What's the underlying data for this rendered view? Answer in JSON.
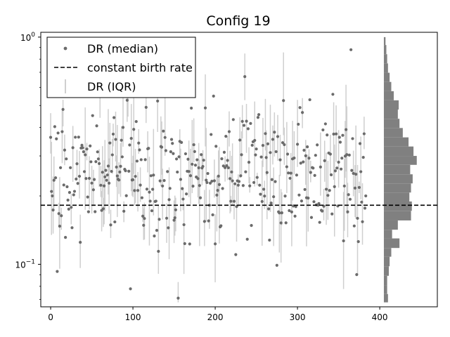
{
  "chart_data": {
    "type": "scatter",
    "title": "Config 19",
    "xlabel": "",
    "ylabel": "",
    "xlim": [
      -12,
      470
    ],
    "ylim": [
      0.065,
      1.05
    ],
    "yscale": "log",
    "x_ticks": [
      0,
      100,
      200,
      300,
      400
    ],
    "y_ticks": [
      {
        "value": 1.0,
        "label": "10^0"
      },
      {
        "value": 0.1,
        "label": "10^-1"
      }
    ],
    "grid": false,
    "legend_position": "top-left",
    "legend": [
      {
        "label": "DR (median)",
        "kind": "point"
      },
      {
        "label": "constant birth rate",
        "kind": "dashed-line"
      },
      {
        "label": "DR (IQR)",
        "kind": "bar"
      }
    ],
    "colors": {
      "median": "#6b6b6b",
      "iqr": "#cfcfcf",
      "reference": "#000000",
      "histogram": "#808080"
    },
    "reference_line": {
      "y": 0.182
    },
    "n_points": 384,
    "sample_points": [
      {
        "x": 2,
        "y": 0.2
      },
      {
        "x": 8,
        "y": 0.093
      },
      {
        "x": 36,
        "y": 0.125
      },
      {
        "x": 60,
        "y": 0.62
      },
      {
        "x": 97,
        "y": 0.078
      },
      {
        "x": 155,
        "y": 0.071
      },
      {
        "x": 198,
        "y": 0.55
      },
      {
        "x": 236,
        "y": 0.67
      },
      {
        "x": 305,
        "y": 0.19
      },
      {
        "x": 365,
        "y": 0.88
      },
      {
        "x": 376,
        "y": 0.34
      },
      {
        "x": 383,
        "y": 0.2
      }
    ],
    "histogram": {
      "orientation": "horizontal",
      "x_offset": 405,
      "bins": [
        {
          "y0": 0.068,
          "y1": 0.074,
          "count": 5
        },
        {
          "y0": 0.074,
          "y1": 0.081,
          "count": 4
        },
        {
          "y0": 0.081,
          "y1": 0.089,
          "count": 4
        },
        {
          "y0": 0.089,
          "y1": 0.098,
          "count": 6
        },
        {
          "y0": 0.098,
          "y1": 0.108,
          "count": 7
        },
        {
          "y0": 0.108,
          "y1": 0.118,
          "count": 9
        },
        {
          "y0": 0.118,
          "y1": 0.13,
          "count": 19
        },
        {
          "y0": 0.13,
          "y1": 0.142,
          "count": 10
        },
        {
          "y0": 0.142,
          "y1": 0.156,
          "count": 17
        },
        {
          "y0": 0.156,
          "y1": 0.172,
          "count": 33
        },
        {
          "y0": 0.172,
          "y1": 0.189,
          "count": 34
        },
        {
          "y0": 0.189,
          "y1": 0.207,
          "count": 31
        },
        {
          "y0": 0.207,
          "y1": 0.227,
          "count": 33
        },
        {
          "y0": 0.227,
          "y1": 0.249,
          "count": 35
        },
        {
          "y0": 0.249,
          "y1": 0.274,
          "count": 32
        },
        {
          "y0": 0.274,
          "y1": 0.3,
          "count": 40
        },
        {
          "y0": 0.3,
          "y1": 0.33,
          "count": 36
        },
        {
          "y0": 0.33,
          "y1": 0.362,
          "count": 30
        },
        {
          "y0": 0.362,
          "y1": 0.398,
          "count": 23
        },
        {
          "y0": 0.398,
          "y1": 0.437,
          "count": 19
        },
        {
          "y0": 0.437,
          "y1": 0.48,
          "count": 17
        },
        {
          "y0": 0.48,
          "y1": 0.527,
          "count": 18
        },
        {
          "y0": 0.527,
          "y1": 0.578,
          "count": 12
        },
        {
          "y0": 0.578,
          "y1": 0.635,
          "count": 9
        },
        {
          "y0": 0.635,
          "y1": 0.697,
          "count": 7
        },
        {
          "y0": 0.697,
          "y1": 0.766,
          "count": 5
        },
        {
          "y0": 0.766,
          "y1": 0.841,
          "count": 4
        },
        {
          "y0": 0.841,
          "y1": 0.923,
          "count": 3
        },
        {
          "y0": 0.923,
          "y1": 1.0,
          "count": 2
        }
      ]
    }
  }
}
